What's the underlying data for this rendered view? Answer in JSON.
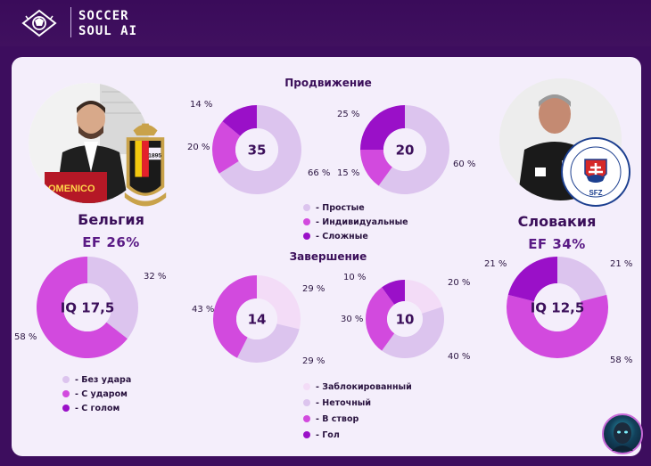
{
  "brand": {
    "line1": "SOCCER",
    "line2": "SOUL AI"
  },
  "sections": {
    "progression": "Продвижение",
    "finishing": "Завершение"
  },
  "teams": {
    "left": {
      "name": "Бельгия",
      "ef": "EF  26%"
    },
    "right": {
      "name": "Словакия",
      "ef": "EF  34%"
    }
  },
  "crests": {
    "belgium_year": "1895",
    "slovakia_text": "SLOVENSKÝ FUTBALOVÝ ZVÄZ",
    "slovakia_abbr": "SFZ"
  },
  "shirt_text": "OMENICO",
  "colors": {
    "light": "#dcc4ee",
    "medium": "#d24ade",
    "dark": "#9a10c8",
    "palest": "#f3dcf7"
  },
  "legends": {
    "progression": [
      "- Простые",
      "- Индивидуальные",
      "- Сложные"
    ],
    "shots": [
      "- Без удара",
      "- С ударом",
      "- С голом"
    ],
    "finishing": [
      "- Заблокированный",
      "- Неточный",
      "- В створ",
      "- Гол"
    ]
  },
  "chart_data": [
    {
      "type": "pie",
      "id": "belgium-progression",
      "center_label": "35",
      "categories": [
        "Простые",
        "Индивидуальные",
        "Сложные"
      ],
      "values": [
        66,
        20,
        14
      ],
      "labels": [
        "66 %",
        "20 %",
        "14 %"
      ]
    },
    {
      "type": "pie",
      "id": "slovakia-progression",
      "center_label": "20",
      "categories": [
        "Простые",
        "Индивидуальные",
        "Сложные"
      ],
      "values": [
        60,
        15,
        25
      ],
      "labels": [
        "60 %",
        "15 %",
        "25 %"
      ]
    },
    {
      "type": "pie",
      "id": "belgium-shots",
      "center_label": "IQ 17,5",
      "categories": [
        "Без удара",
        "С ударом",
        "С голом"
      ],
      "values": [
        32,
        58,
        0
      ],
      "labels": [
        "32 %",
        "58 %"
      ]
    },
    {
      "type": "pie",
      "id": "slovakia-shots",
      "center_label": "IQ 12,5",
      "categories": [
        "Без удара",
        "С ударом",
        "С голом"
      ],
      "values": [
        21,
        58,
        21
      ],
      "labels": [
        "21 %",
        "58 %",
        "21 %"
      ]
    },
    {
      "type": "pie",
      "id": "belgium-finishing",
      "center_label": "14",
      "categories": [
        "Заблокированный",
        "Неточный",
        "В створ",
        "Гол"
      ],
      "values": [
        29,
        29,
        43,
        0
      ],
      "labels": [
        "29 %",
        "29 %",
        "43 %"
      ]
    },
    {
      "type": "pie",
      "id": "slovakia-finishing",
      "center_label": "10",
      "categories": [
        "Заблокированный",
        "Неточный",
        "В створ",
        "Гол"
      ],
      "values": [
        20,
        40,
        30,
        10
      ],
      "labels": [
        "20 %",
        "40 %",
        "30 %",
        "10 %"
      ]
    }
  ]
}
